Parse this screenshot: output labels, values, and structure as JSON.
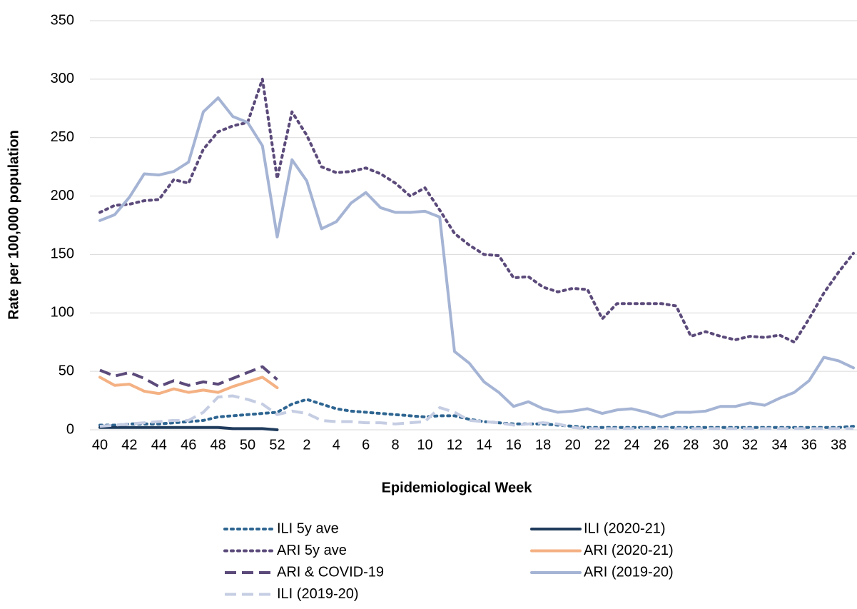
{
  "chart_data": {
    "type": "line",
    "y_label": "Rate per 100,000 population",
    "x_label": "Epidemiological Week",
    "categories": [
      "40",
      null,
      "42",
      null,
      "44",
      null,
      "46",
      null,
      "48",
      null,
      "50",
      null,
      "52",
      null,
      "2",
      null,
      "4",
      null,
      "6",
      null,
      "8",
      null,
      "10",
      null,
      "12",
      null,
      "14",
      null,
      "16",
      null,
      "18",
      null,
      "20",
      null,
      "22",
      null,
      "24",
      null,
      "26",
      null,
      "28",
      null,
      "30",
      null,
      "32",
      null,
      "34",
      null,
      "36",
      null,
      "38",
      null
    ],
    "ylim": [
      0,
      350
    ],
    "yticks": [
      0,
      50,
      100,
      150,
      200,
      250,
      300,
      350
    ],
    "grid": true,
    "series": [
      {
        "name": "ILI 5y ave",
        "color": "#2e6591",
        "style": "dot",
        "values": [
          4,
          4,
          5,
          5,
          5,
          6,
          7,
          8,
          11,
          12,
          13,
          14,
          15,
          22,
          26,
          22,
          18,
          16,
          15,
          14,
          13,
          12,
          11,
          12,
          12,
          9,
          7,
          6,
          5,
          5,
          5,
          4,
          3,
          2,
          2,
          2,
          2,
          2,
          2,
          2,
          2,
          2,
          2,
          2,
          2,
          2,
          2,
          2,
          2,
          2,
          2,
          3
        ]
      },
      {
        "name": "ILI (2020-21)",
        "color": "#1f3b5c",
        "style": "solid",
        "values": [
          2,
          2,
          2,
          2,
          2,
          2,
          2,
          2,
          2,
          1,
          1,
          1,
          0,
          null,
          null,
          null,
          null,
          null,
          null,
          null,
          null,
          null,
          null,
          null,
          null,
          null,
          null,
          null,
          null,
          null,
          null,
          null,
          null,
          null,
          null,
          null,
          null,
          null,
          null,
          null,
          null,
          null,
          null,
          null,
          null,
          null,
          null,
          null,
          null,
          null,
          null,
          null
        ]
      },
      {
        "name": "ARI 5y ave",
        "color": "#5b4a7a",
        "style": "dot",
        "values": [
          186,
          192,
          193,
          196,
          197,
          214,
          211,
          240,
          255,
          260,
          263,
          300,
          215,
          272,
          252,
          225,
          220,
          221,
          224,
          219,
          211,
          200,
          207,
          188,
          168,
          158,
          150,
          149,
          130,
          131,
          122,
          118,
          121,
          120,
          95,
          108,
          108,
          108,
          108,
          106,
          80,
          84,
          80,
          77,
          80,
          79,
          81,
          75,
          95,
          117,
          135,
          151
        ]
      },
      {
        "name": "ARI (2020-21)",
        "color": "#f4b183",
        "style": "solid",
        "values": [
          45,
          38,
          39,
          33,
          31,
          35,
          32,
          34,
          32,
          37,
          41,
          45,
          36,
          null,
          null,
          null,
          null,
          null,
          null,
          null,
          null,
          null,
          null,
          null,
          null,
          null,
          null,
          null,
          null,
          null,
          null,
          null,
          null,
          null,
          null,
          null,
          null,
          null,
          null,
          null,
          null,
          null,
          null,
          null,
          null,
          null,
          null,
          null,
          null,
          null,
          null,
          null
        ]
      },
      {
        "name": "ARI & COVID-19",
        "color": "#5b4a7a",
        "style": "dash",
        "values": [
          51,
          46,
          49,
          44,
          37,
          42,
          38,
          41,
          39,
          44,
          49,
          54,
          43,
          null,
          null,
          null,
          null,
          null,
          null,
          null,
          null,
          null,
          null,
          null,
          null,
          null,
          null,
          null,
          null,
          null,
          null,
          null,
          null,
          null,
          null,
          null,
          null,
          null,
          null,
          null,
          null,
          null,
          null,
          null,
          null,
          null,
          null,
          null,
          null,
          null,
          null,
          null
        ]
      },
      {
        "name": "ARI (2019-20)",
        "color": "#a5b4d4",
        "style": "solid",
        "values": [
          179,
          184,
          199,
          219,
          218,
          221,
          229,
          272,
          284,
          268,
          263,
          243,
          165,
          231,
          213,
          172,
          178,
          194,
          203,
          190,
          186,
          186,
          187,
          182,
          67,
          57,
          41,
          32,
          20,
          24,
          18,
          15,
          16,
          18,
          14,
          17,
          18,
          15,
          11,
          15,
          15,
          16,
          20,
          20,
          23,
          21,
          27,
          32,
          42,
          62,
          59,
          53
        ]
      },
      {
        "name": "ILI (2019-20)",
        "color": "#c5cde3",
        "style": "dash",
        "values": [
          3,
          4,
          5,
          6,
          7,
          8,
          8,
          15,
          28,
          29,
          26,
          22,
          13,
          16,
          14,
          8,
          7,
          7,
          6,
          6,
          5,
          6,
          7,
          19,
          15,
          8,
          7,
          6,
          4,
          5,
          6,
          5,
          2,
          1,
          1,
          1,
          1,
          1,
          1,
          1,
          1,
          1,
          1,
          1,
          1,
          1,
          1,
          1,
          1,
          1,
          1,
          1
        ]
      }
    ]
  }
}
